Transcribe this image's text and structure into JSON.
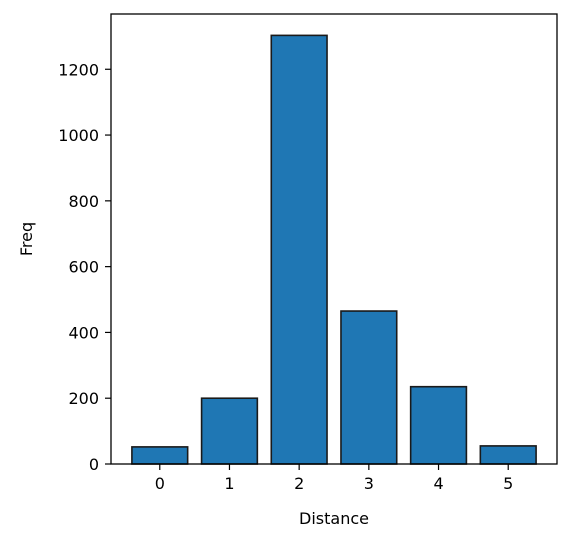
{
  "chart_data": {
    "type": "bar",
    "title": "",
    "xlabel": "Distance",
    "ylabel": "Freq",
    "categories": [
      "0",
      "1",
      "2",
      "3",
      "4",
      "5"
    ],
    "x": [
      0,
      1,
      2,
      3,
      4,
      5
    ],
    "values": [
      52,
      200,
      1303,
      465,
      235,
      55
    ],
    "xlim": [
      -0.7,
      5.7
    ],
    "ylim": [
      0,
      1368
    ],
    "yticks": [
      0,
      200,
      400,
      600,
      800,
      1000,
      1200
    ],
    "xticks": [
      0,
      1,
      2,
      3,
      4,
      5
    ],
    "bar_color": "#1f77b4",
    "edge_color": "#1a1a1a",
    "grid": false,
    "legend": "none"
  }
}
